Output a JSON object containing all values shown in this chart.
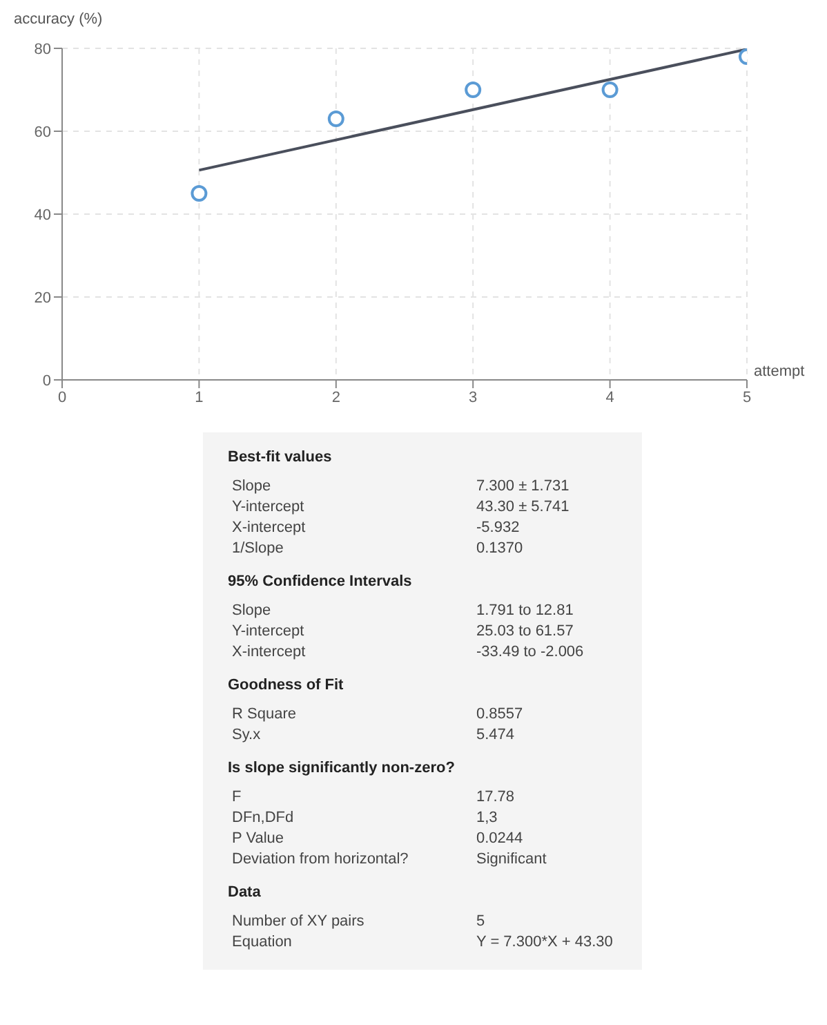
{
  "chart_data": {
    "type": "scatter",
    "xlabel": "attempt",
    "ylabel": "accuracy (%)",
    "xlim": [
      0,
      5
    ],
    "ylim": [
      0,
      80
    ],
    "xticks": [
      0,
      1,
      2,
      3,
      4,
      5
    ],
    "yticks": [
      0,
      20,
      40,
      60,
      80
    ],
    "grid": true,
    "series": [
      {
        "type": "scatter",
        "color": "#5b9bd5",
        "marker": "circle",
        "x": [
          1,
          2,
          3,
          4,
          5
        ],
        "values": [
          45,
          63,
          70,
          70,
          78
        ]
      },
      {
        "type": "line",
        "color": "#4a4f5c",
        "marker": "none",
        "x": [
          1,
          5
        ],
        "values": [
          50.6,
          79.8
        ]
      }
    ],
    "annotations": [
      "Best-fit values",
      "Slope",
      "7.300 ± 1.731",
      "Y-intercept",
      "43.30 ± 5.741",
      "X-intercept",
      "-5.932",
      "1/Slope",
      "0.1370",
      "95% Confidence Intervals",
      "Slope",
      "1.791 to 12.81",
      "Y-intercept",
      "25.03 to 61.57",
      "X-intercept",
      "-33.49 to -2.006",
      "Goodness of Fit",
      "R Square",
      "0.8557",
      "Sy.x",
      "5.474",
      "Is slope significantly non-zero?",
      "F",
      "17.78",
      "DFn,DFd",
      "1,3",
      "P Value",
      "0.0244",
      "Deviation from horizontal?",
      "Significant",
      "Data",
      "Number of XY pairs",
      "5",
      "Equation",
      "Y = 7.300*X + 43.30"
    ]
  }
}
